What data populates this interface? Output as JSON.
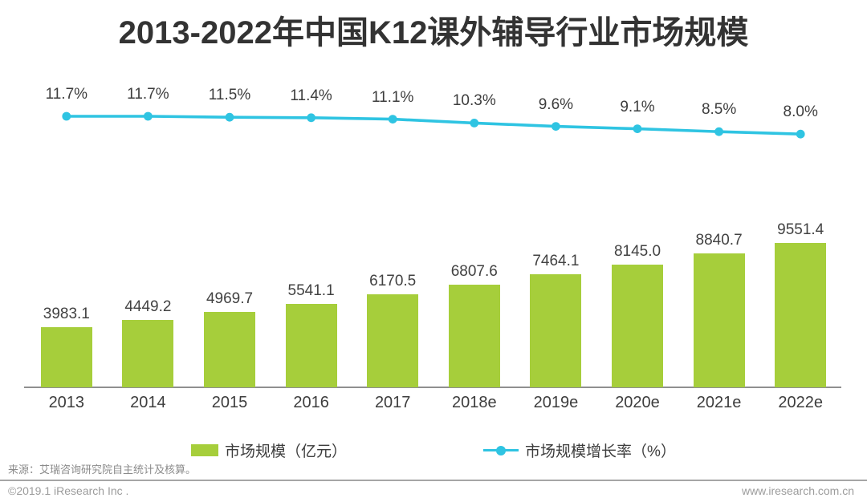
{
  "title": "2013-2022年中国K12课外辅导行业市场规模",
  "colors": {
    "bar": "#a6ce3b",
    "line": "#2fc4e2",
    "title_text": "#333333",
    "label_text": "#3d3d3d",
    "axis_line": "#8f8f8f",
    "footer_text": "#9c9c9c"
  },
  "chart_data": {
    "type": "combo",
    "title": "2013-2022年中国K12课外辅导行业市场规模",
    "categories": [
      "2013",
      "2014",
      "2015",
      "2016",
      "2017",
      "2018e",
      "2019e",
      "2020e",
      "2021e",
      "2022e"
    ],
    "series": [
      {
        "name": "市场规模（亿元）",
        "type": "bar",
        "color": "#a6ce3b",
        "values": [
          3983.1,
          4449.2,
          4969.7,
          5541.1,
          6170.5,
          6807.6,
          7464.1,
          8145.0,
          8840.7,
          9551.4
        ],
        "labels": [
          "3983.1",
          "4449.2",
          "4969.7",
          "5541.1",
          "6170.5",
          "6807.6",
          "7464.1",
          "8145.0",
          "8840.7",
          "9551.4"
        ]
      },
      {
        "name": "市场规模增长率（%）",
        "type": "line",
        "color": "#2fc4e2",
        "values": [
          11.7,
          11.7,
          11.5,
          11.4,
          11.1,
          10.3,
          9.6,
          9.1,
          8.5,
          8.0
        ],
        "labels": [
          "11.7%",
          "11.7%",
          "11.5%",
          "11.4%",
          "11.1%",
          "10.3%",
          "9.6%",
          "9.1%",
          "8.5%",
          "8.0%"
        ]
      }
    ],
    "xlabel": "",
    "ylabel": "",
    "grid": false,
    "y_axis_visible": false,
    "data_labels_visible": true,
    "legend_position": "bottom"
  },
  "legend": {
    "items": [
      {
        "label": "市场规模（亿元）",
        "marker": "green-bar-swatch"
      },
      {
        "label": "市场规模增长率（%）",
        "marker": "cyan-line-dot"
      }
    ]
  },
  "source": "来源：艾瑞咨询研究院自主统计及核算。",
  "footer": {
    "copyright": "©2019.1 iResearch Inc .",
    "website": "www.iresearch.com.cn"
  }
}
